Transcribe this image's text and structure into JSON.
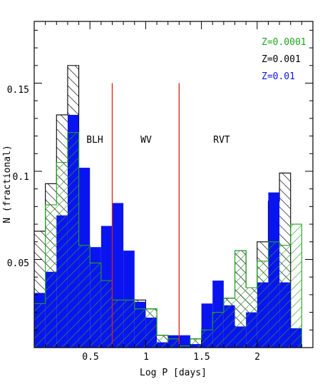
{
  "chart_data": {
    "type": "bar",
    "xlabel": "Log P [days]",
    "ylabel": "N (fractional)",
    "xlim": [
      0.0,
      2.5
    ],
    "ylim": [
      0.0,
      0.185
    ],
    "x_ticks": [
      0.5,
      1,
      1.5,
      2
    ],
    "x_tick_labels": [
      "0.5",
      "1",
      "1.5",
      "2"
    ],
    "y_ticks": [
      0.05,
      0.1,
      0.15
    ],
    "y_tick_labels": [
      "0.05",
      "0.1",
      "0.15"
    ],
    "bin_width": 0.1,
    "series": [
      {
        "name": "Z=0.0001",
        "color": "#1fa61f",
        "style": "hatch-diagonal-right",
        "bins": [
          {
            "x": 0.0,
            "y": 0.025
          },
          {
            "x": 0.1,
            "y": 0.081
          },
          {
            "x": 0.2,
            "y": 0.105
          },
          {
            "x": 0.3,
            "y": 0.122
          },
          {
            "x": 0.4,
            "y": 0.058
          },
          {
            "x": 0.5,
            "y": 0.048
          },
          {
            "x": 0.6,
            "y": 0.038
          },
          {
            "x": 0.7,
            "y": 0.027
          },
          {
            "x": 0.8,
            "y": 0.027
          },
          {
            "x": 0.9,
            "y": 0.022
          },
          {
            "x": 1.0,
            "y": 0.022
          },
          {
            "x": 1.1,
            "y": 0.007
          },
          {
            "x": 1.2,
            "y": 0.005
          },
          {
            "x": 1.3,
            "y": 0.001
          },
          {
            "x": 1.4,
            "y": 0.005
          },
          {
            "x": 1.5,
            "y": 0.01
          },
          {
            "x": 1.6,
            "y": 0.02
          },
          {
            "x": 1.7,
            "y": 0.028
          },
          {
            "x": 1.8,
            "y": 0.055
          },
          {
            "x": 1.9,
            "y": 0.034
          },
          {
            "x": 2.0,
            "y": 0.049
          },
          {
            "x": 2.1,
            "y": 0.06
          },
          {
            "x": 2.2,
            "y": 0.058
          },
          {
            "x": 2.3,
            "y": 0.07
          }
        ]
      },
      {
        "name": "Z=0.001",
        "color": "#000000",
        "style": "hatch-diagonal-left",
        "bins": [
          {
            "x": 0.0,
            "y": 0.066
          },
          {
            "x": 0.1,
            "y": 0.093
          },
          {
            "x": 0.2,
            "y": 0.132
          },
          {
            "x": 0.3,
            "y": 0.16
          },
          {
            "x": 0.4,
            "y": 0.058
          },
          {
            "x": 0.5,
            "y": 0.048
          },
          {
            "x": 0.6,
            "y": 0.038
          },
          {
            "x": 0.7,
            "y": 0.027
          },
          {
            "x": 0.8,
            "y": 0.027
          },
          {
            "x": 0.9,
            "y": 0.027
          },
          {
            "x": 1.0,
            "y": 0.022
          },
          {
            "x": 1.1,
            "y": 0.007
          },
          {
            "x": 1.2,
            "y": 0.006
          },
          {
            "x": 1.3,
            "y": 0.004
          },
          {
            "x": 1.4,
            "y": 0.005
          },
          {
            "x": 1.5,
            "y": 0.01
          },
          {
            "x": 1.6,
            "y": 0.02
          },
          {
            "x": 1.7,
            "y": 0.028
          },
          {
            "x": 1.8,
            "y": 0.055
          },
          {
            "x": 1.9,
            "y": 0.034
          },
          {
            "x": 2.0,
            "y": 0.06
          },
          {
            "x": 2.1,
            "y": 0.083
          },
          {
            "x": 2.2,
            "y": 0.099
          },
          {
            "x": 2.3,
            "y": 0.0
          }
        ]
      },
      {
        "name": "Z=0.01",
        "color": "#0a14f0",
        "style": "solid",
        "bins": [
          {
            "x": 0.0,
            "y": 0.031
          },
          {
            "x": 0.1,
            "y": 0.043
          },
          {
            "x": 0.2,
            "y": 0.075
          },
          {
            "x": 0.3,
            "y": 0.132
          },
          {
            "x": 0.4,
            "y": 0.102
          },
          {
            "x": 0.5,
            "y": 0.057
          },
          {
            "x": 0.6,
            "y": 0.069
          },
          {
            "x": 0.7,
            "y": 0.082
          },
          {
            "x": 0.8,
            "y": 0.055
          },
          {
            "x": 0.9,
            "y": 0.026
          },
          {
            "x": 1.0,
            "y": 0.017
          },
          {
            "x": 1.1,
            "y": 0.003
          },
          {
            "x": 1.2,
            "y": 0.007
          },
          {
            "x": 1.3,
            "y": 0.007
          },
          {
            "x": 1.4,
            "y": 0.002
          },
          {
            "x": 1.5,
            "y": 0.025
          },
          {
            "x": 1.6,
            "y": 0.038
          },
          {
            "x": 1.7,
            "y": 0.024
          },
          {
            "x": 1.8,
            "y": 0.012
          },
          {
            "x": 1.9,
            "y": 0.02
          },
          {
            "x": 2.0,
            "y": 0.037
          },
          {
            "x": 2.1,
            "y": 0.088
          },
          {
            "x": 2.2,
            "y": 0.037
          },
          {
            "x": 2.3,
            "y": 0.011
          }
        ]
      }
    ],
    "vlines": [
      {
        "x": 0.7,
        "color": "#e0201a"
      },
      {
        "x": 1.3,
        "color": "#e0201a"
      }
    ],
    "vline_top": 0.15,
    "region_labels": [
      {
        "text": "BLH",
        "x": 0.5,
        "y": 0.122
      },
      {
        "text": "WV",
        "x": 1.0,
        "y": 0.122
      },
      {
        "text": "RVT",
        "x": 1.65,
        "y": 0.122
      }
    ],
    "legend_position": "top-right"
  }
}
